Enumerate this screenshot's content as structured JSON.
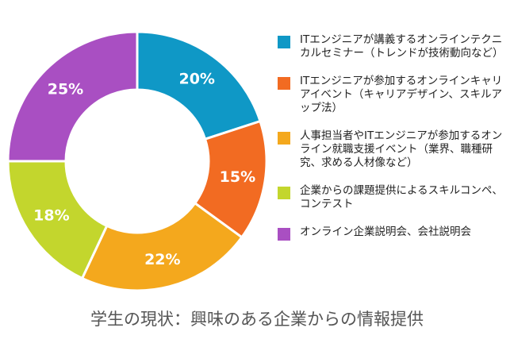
{
  "chart_data": {
    "type": "pie",
    "title": "学生の現状：興味のある企業からの情報提供",
    "categories": [
      "ITエンジニアが講義するオンラインテクニカルセミナー（トレンドが技術動向など）",
      "ITエンジニアが参加するオンラインキャリアイベント（キャリアデザイン、スキルアップ法）",
      "人事担当者やITエンジニアが参加するオンライン就職支援イベント（業界、職種研究、求める人材像など）",
      "企業からの課題提供によるスキルコンペ、コンテスト",
      "オンライン企業説明会、会社説明会"
    ],
    "values": [
      20,
      15,
      22,
      18,
      25
    ],
    "data_labels": [
      "20%",
      "15%",
      "22%",
      "18%",
      "25%"
    ],
    "colors": [
      "#0f98c6",
      "#f26b22",
      "#f4a81d",
      "#c3d62d",
      "#a94fc2"
    ],
    "legend_position": "right"
  }
}
